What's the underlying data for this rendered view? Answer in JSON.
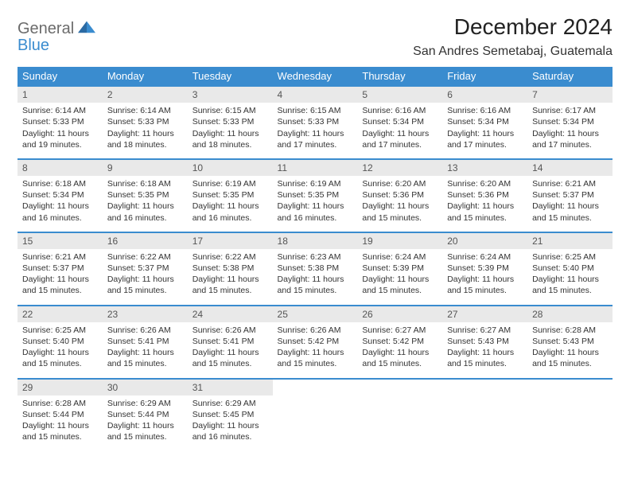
{
  "brand": {
    "general": "General",
    "blue": "Blue"
  },
  "title": "December 2024",
  "location": "San Andres Semetabaj, Guatemala",
  "colors": {
    "header_bg": "#3a8ccf",
    "header_text": "#ffffff",
    "daynum_bg": "#e9e9e9",
    "border": "#3a8ccf",
    "logo_gray": "#6b6b6b",
    "logo_blue": "#3a8ccf",
    "page_bg": "#ffffff"
  },
  "weekdays": [
    "Sunday",
    "Monday",
    "Tuesday",
    "Wednesday",
    "Thursday",
    "Friday",
    "Saturday"
  ],
  "weeks": [
    [
      {
        "n": "1",
        "sunrise": "6:14 AM",
        "sunset": "5:33 PM",
        "daylight": "11 hours and 19 minutes."
      },
      {
        "n": "2",
        "sunrise": "6:14 AM",
        "sunset": "5:33 PM",
        "daylight": "11 hours and 18 minutes."
      },
      {
        "n": "3",
        "sunrise": "6:15 AM",
        "sunset": "5:33 PM",
        "daylight": "11 hours and 18 minutes."
      },
      {
        "n": "4",
        "sunrise": "6:15 AM",
        "sunset": "5:33 PM",
        "daylight": "11 hours and 17 minutes."
      },
      {
        "n": "5",
        "sunrise": "6:16 AM",
        "sunset": "5:34 PM",
        "daylight": "11 hours and 17 minutes."
      },
      {
        "n": "6",
        "sunrise": "6:16 AM",
        "sunset": "5:34 PM",
        "daylight": "11 hours and 17 minutes."
      },
      {
        "n": "7",
        "sunrise": "6:17 AM",
        "sunset": "5:34 PM",
        "daylight": "11 hours and 17 minutes."
      }
    ],
    [
      {
        "n": "8",
        "sunrise": "6:18 AM",
        "sunset": "5:34 PM",
        "daylight": "11 hours and 16 minutes."
      },
      {
        "n": "9",
        "sunrise": "6:18 AM",
        "sunset": "5:35 PM",
        "daylight": "11 hours and 16 minutes."
      },
      {
        "n": "10",
        "sunrise": "6:19 AM",
        "sunset": "5:35 PM",
        "daylight": "11 hours and 16 minutes."
      },
      {
        "n": "11",
        "sunrise": "6:19 AM",
        "sunset": "5:35 PM",
        "daylight": "11 hours and 16 minutes."
      },
      {
        "n": "12",
        "sunrise": "6:20 AM",
        "sunset": "5:36 PM",
        "daylight": "11 hours and 15 minutes."
      },
      {
        "n": "13",
        "sunrise": "6:20 AM",
        "sunset": "5:36 PM",
        "daylight": "11 hours and 15 minutes."
      },
      {
        "n": "14",
        "sunrise": "6:21 AM",
        "sunset": "5:37 PM",
        "daylight": "11 hours and 15 minutes."
      }
    ],
    [
      {
        "n": "15",
        "sunrise": "6:21 AM",
        "sunset": "5:37 PM",
        "daylight": "11 hours and 15 minutes."
      },
      {
        "n": "16",
        "sunrise": "6:22 AM",
        "sunset": "5:37 PM",
        "daylight": "11 hours and 15 minutes."
      },
      {
        "n": "17",
        "sunrise": "6:22 AM",
        "sunset": "5:38 PM",
        "daylight": "11 hours and 15 minutes."
      },
      {
        "n": "18",
        "sunrise": "6:23 AM",
        "sunset": "5:38 PM",
        "daylight": "11 hours and 15 minutes."
      },
      {
        "n": "19",
        "sunrise": "6:24 AM",
        "sunset": "5:39 PM",
        "daylight": "11 hours and 15 minutes."
      },
      {
        "n": "20",
        "sunrise": "6:24 AM",
        "sunset": "5:39 PM",
        "daylight": "11 hours and 15 minutes."
      },
      {
        "n": "21",
        "sunrise": "6:25 AM",
        "sunset": "5:40 PM",
        "daylight": "11 hours and 15 minutes."
      }
    ],
    [
      {
        "n": "22",
        "sunrise": "6:25 AM",
        "sunset": "5:40 PM",
        "daylight": "11 hours and 15 minutes."
      },
      {
        "n": "23",
        "sunrise": "6:26 AM",
        "sunset": "5:41 PM",
        "daylight": "11 hours and 15 minutes."
      },
      {
        "n": "24",
        "sunrise": "6:26 AM",
        "sunset": "5:41 PM",
        "daylight": "11 hours and 15 minutes."
      },
      {
        "n": "25",
        "sunrise": "6:26 AM",
        "sunset": "5:42 PM",
        "daylight": "11 hours and 15 minutes."
      },
      {
        "n": "26",
        "sunrise": "6:27 AM",
        "sunset": "5:42 PM",
        "daylight": "11 hours and 15 minutes."
      },
      {
        "n": "27",
        "sunrise": "6:27 AM",
        "sunset": "5:43 PM",
        "daylight": "11 hours and 15 minutes."
      },
      {
        "n": "28",
        "sunrise": "6:28 AM",
        "sunset": "5:43 PM",
        "daylight": "11 hours and 15 minutes."
      }
    ],
    [
      {
        "n": "29",
        "sunrise": "6:28 AM",
        "sunset": "5:44 PM",
        "daylight": "11 hours and 15 minutes."
      },
      {
        "n": "30",
        "sunrise": "6:29 AM",
        "sunset": "5:44 PM",
        "daylight": "11 hours and 15 minutes."
      },
      {
        "n": "31",
        "sunrise": "6:29 AM",
        "sunset": "5:45 PM",
        "daylight": "11 hours and 16 minutes."
      },
      null,
      null,
      null,
      null
    ]
  ],
  "labels": {
    "sunrise": "Sunrise: ",
    "sunset": "Sunset: ",
    "daylight": "Daylight: "
  }
}
